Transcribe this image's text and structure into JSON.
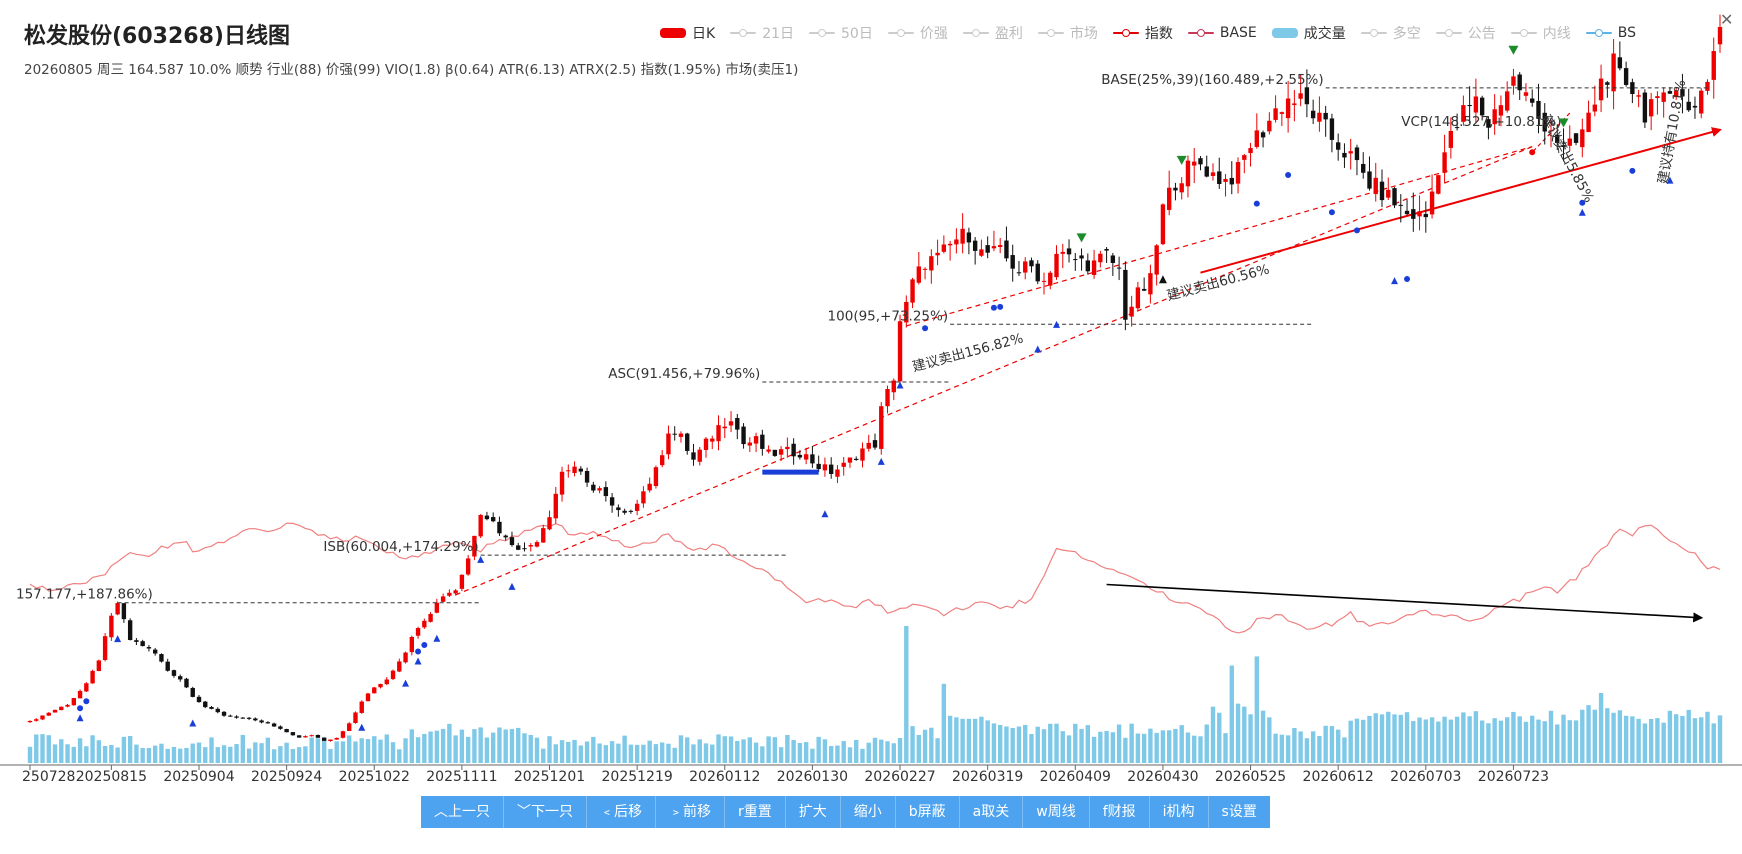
{
  "title": "松发股份(603268)日线图",
  "subtitle": "20260805 周三 164.587 10.0% 顺势 行业(88) 价强(99) VIO(1.8) β(0.64) ATR(6.13) ATRX(2.5) 指数(1.95%) 市场(卖压1)",
  "legend": [
    {
      "label": "日K",
      "color": "#ee0000",
      "kind": "bar",
      "on": true
    },
    {
      "label": "21日",
      "color": "#cccccc",
      "kind": "line",
      "on": false
    },
    {
      "label": "50日",
      "color": "#cccccc",
      "kind": "line",
      "on": false
    },
    {
      "label": "价强",
      "color": "#cccccc",
      "kind": "line",
      "on": false
    },
    {
      "label": "盈利",
      "color": "#cccccc",
      "kind": "line",
      "on": false
    },
    {
      "label": "市场",
      "color": "#cccccc",
      "kind": "line",
      "on": false
    },
    {
      "label": "指数",
      "color": "#e00000",
      "kind": "line",
      "on": true
    },
    {
      "label": "BASE",
      "color": "#c8385a",
      "kind": "line",
      "on": true
    },
    {
      "label": "成交量",
      "color": "#7ec8e8",
      "kind": "bar",
      "on": true
    },
    {
      "label": "多空",
      "color": "#cccccc",
      "kind": "line",
      "on": false
    },
    {
      "label": "公告",
      "color": "#cccccc",
      "kind": "line",
      "on": false
    },
    {
      "label": "内线",
      "color": "#cccccc",
      "kind": "line",
      "on": false
    },
    {
      "label": "BS",
      "color": "#5ab4e8",
      "kind": "line",
      "on": true
    }
  ],
  "close_symbol": "✕",
  "toolbar": [
    "︿上一只",
    "﹀下一只",
    "﹤后移",
    "﹥前移",
    "r重置",
    "扩大",
    "缩小",
    "b屏蔽",
    "a取关",
    "w周线",
    "f财报",
    "i机构",
    "s设置"
  ],
  "colors": {
    "up": "#ee0000",
    "down": "#111111",
    "volume": "#7ec8e8",
    "rs_line": "#f08080",
    "marker_blue": "#1a3fd9",
    "marker_green": "#1b8c2a",
    "trend_red": "#ee0000"
  },
  "chart_data": {
    "type": "candlestick",
    "x_tick_labels": [
      "250728",
      "20250815",
      "20250904",
      "20250924",
      "20251022",
      "20251111",
      "20251201",
      "20251219",
      "20260112",
      "20260130",
      "20260227",
      "20260319",
      "20260409",
      "20260430",
      "20260525",
      "20260612",
      "20260703",
      "20260723"
    ],
    "x_tick_index": [
      0,
      13,
      27,
      41,
      55,
      69,
      83,
      97,
      111,
      125,
      139,
      153,
      167,
      181,
      195,
      209,
      223,
      237
    ],
    "last_close": 164.587,
    "price_keypoints": [
      [
        0,
        14.8
      ],
      [
        3,
        18
      ],
      [
        6,
        21
      ],
      [
        9,
        28
      ],
      [
        11,
        37
      ],
      [
        13,
        52
      ],
      [
        14,
        57.2
      ],
      [
        16,
        44
      ],
      [
        18,
        42
      ],
      [
        20,
        39
      ],
      [
        22,
        33
      ],
      [
        24,
        30
      ],
      [
        26,
        24
      ],
      [
        28,
        20
      ],
      [
        31,
        17
      ],
      [
        34,
        16
      ],
      [
        38,
        14
      ],
      [
        40,
        12
      ],
      [
        43,
        9
      ],
      [
        45,
        10
      ],
      [
        47,
        8
      ],
      [
        49,
        9
      ],
      [
        51,
        14
      ],
      [
        53,
        22
      ],
      [
        55,
        27
      ],
      [
        57,
        30
      ],
      [
        60,
        40
      ],
      [
        62,
        49
      ],
      [
        64,
        54
      ],
      [
        66,
        60
      ],
      [
        68,
        62
      ],
      [
        70,
        73
      ],
      [
        71,
        82
      ],
      [
        72,
        90
      ],
      [
        74,
        86
      ],
      [
        76,
        80
      ],
      [
        79,
        76
      ],
      [
        81,
        80
      ],
      [
        83,
        89
      ],
      [
        85,
        104
      ],
      [
        87,
        106
      ],
      [
        89,
        99
      ],
      [
        91,
        98
      ],
      [
        93,
        91
      ],
      [
        95,
        88
      ],
      [
        98,
        97
      ],
      [
        100,
        104
      ],
      [
        102,
        119
      ],
      [
        104,
        116
      ],
      [
        106,
        108
      ],
      [
        108,
        114
      ],
      [
        110,
        120
      ],
      [
        112,
        124
      ],
      [
        114,
        114
      ],
      [
        116,
        115
      ],
      [
        118,
        110
      ],
      [
        120,
        111
      ],
      [
        123,
        111
      ],
      [
        126,
        106
      ],
      [
        128,
        104
      ],
      [
        130,
        106
      ],
      [
        133,
        112
      ],
      [
        135,
        114
      ],
      [
        136,
        126
      ],
      [
        137,
        132
      ],
      [
        138,
        138
      ],
      [
        139,
        158
      ],
      [
        140,
        163
      ],
      [
        141,
        171
      ],
      [
        143,
        179
      ],
      [
        145,
        180
      ],
      [
        148,
        187
      ],
      [
        150,
        189
      ],
      [
        152,
        182
      ],
      [
        155,
        182
      ],
      [
        158,
        176
      ],
      [
        160,
        177
      ],
      [
        162,
        172
      ],
      [
        164,
        182
      ],
      [
        166,
        180
      ],
      [
        168,
        179
      ],
      [
        170,
        178
      ],
      [
        172,
        181
      ],
      [
        174,
        176
      ],
      [
        175,
        160
      ],
      [
        177,
        167
      ],
      [
        179,
        172
      ],
      [
        181,
        198
      ],
      [
        183,
        208
      ],
      [
        185,
        212
      ],
      [
        187,
        214
      ],
      [
        189,
        210
      ],
      [
        191,
        208
      ],
      [
        193,
        211
      ],
      [
        195,
        221
      ],
      [
        197,
        226
      ],
      [
        199,
        233
      ],
      [
        201,
        237
      ],
      [
        203,
        236
      ],
      [
        205,
        232
      ],
      [
        208,
        223
      ],
      [
        211,
        216
      ],
      [
        214,
        207
      ],
      [
        217,
        202
      ],
      [
        220,
        196
      ],
      [
        223,
        195
      ],
      [
        225,
        213
      ],
      [
        227,
        223
      ],
      [
        229,
        232
      ],
      [
        231,
        236
      ],
      [
        233,
        228
      ],
      [
        235,
        237
      ],
      [
        237,
        244
      ],
      [
        239,
        238
      ],
      [
        241,
        230
      ],
      [
        243,
        227
      ],
      [
        245,
        218
      ],
      [
        247,
        221
      ],
      [
        249,
        230
      ],
      [
        251,
        243
      ],
      [
        253,
        249
      ],
      [
        255,
        239
      ],
      [
        257,
        241
      ],
      [
        258,
        230
      ],
      [
        260,
        242
      ],
      [
        262,
        235
      ],
      [
        264,
        238
      ],
      [
        266,
        236
      ],
      [
        268,
        242
      ],
      [
        269,
        255
      ],
      [
        270,
        265
      ]
    ],
    "rs_keypoints": [
      [
        0,
        0.3
      ],
      [
        3,
        0.26
      ],
      [
        6,
        0.3
      ],
      [
        9,
        0.32
      ],
      [
        12,
        0.37
      ],
      [
        14,
        0.44
      ],
      [
        16,
        0.48
      ],
      [
        18,
        0.45
      ],
      [
        21,
        0.5
      ],
      [
        24,
        0.54
      ],
      [
        27,
        0.47
      ],
      [
        30,
        0.52
      ],
      [
        34,
        0.58
      ],
      [
        38,
        0.6
      ],
      [
        42,
        0.62
      ],
      [
        46,
        0.57
      ],
      [
        50,
        0.55
      ],
      [
        54,
        0.54
      ],
      [
        57,
        0.48
      ],
      [
        60,
        0.44
      ],
      [
        63,
        0.46
      ],
      [
        66,
        0.5
      ],
      [
        69,
        0.53
      ],
      [
        72,
        0.49
      ],
      [
        75,
        0.53
      ],
      [
        78,
        0.57
      ],
      [
        81,
        0.6
      ],
      [
        84,
        0.62
      ],
      [
        87,
        0.56
      ],
      [
        90,
        0.58
      ],
      [
        93,
        0.54
      ],
      [
        96,
        0.5
      ],
      [
        99,
        0.53
      ],
      [
        102,
        0.56
      ],
      [
        106,
        0.5
      ],
      [
        110,
        0.51
      ],
      [
        113,
        0.45
      ],
      [
        116,
        0.4
      ],
      [
        119,
        0.33
      ],
      [
        122,
        0.25
      ],
      [
        125,
        0.2
      ],
      [
        128,
        0.22
      ],
      [
        131,
        0.17
      ],
      [
        134,
        0.22
      ],
      [
        137,
        0.15
      ],
      [
        140,
        0.18
      ],
      [
        143,
        0.17
      ],
      [
        146,
        0.14
      ],
      [
        149,
        0.17
      ],
      [
        152,
        0.21
      ],
      [
        155,
        0.17
      ],
      [
        158,
        0.2
      ],
      [
        160,
        0.22
      ],
      [
        162,
        0.35
      ],
      [
        164,
        0.5
      ],
      [
        166,
        0.48
      ],
      [
        168,
        0.45
      ],
      [
        171,
        0.4
      ],
      [
        174,
        0.37
      ],
      [
        177,
        0.33
      ],
      [
        180,
        0.27
      ],
      [
        183,
        0.19
      ],
      [
        185,
        0.2
      ],
      [
        188,
        0.14
      ],
      [
        191,
        0.08
      ],
      [
        193,
        0.03
      ],
      [
        196,
        0.1
      ],
      [
        199,
        0.14
      ],
      [
        202,
        0.1
      ],
      [
        205,
        0.06
      ],
      [
        208,
        0.09
      ],
      [
        211,
        0.14
      ],
      [
        214,
        0.07
      ],
      [
        217,
        0.1
      ],
      [
        220,
        0.12
      ],
      [
        223,
        0.16
      ],
      [
        226,
        0.14
      ],
      [
        229,
        0.1
      ],
      [
        232,
        0.12
      ],
      [
        235,
        0.18
      ],
      [
        238,
        0.22
      ],
      [
        241,
        0.28
      ],
      [
        244,
        0.26
      ],
      [
        247,
        0.34
      ],
      [
        250,
        0.44
      ],
      [
        252,
        0.52
      ],
      [
        254,
        0.6
      ],
      [
        256,
        0.56
      ],
      [
        258,
        0.62
      ],
      [
        260,
        0.6
      ],
      [
        262,
        0.55
      ],
      [
        264,
        0.51
      ],
      [
        266,
        0.46
      ],
      [
        268,
        0.4
      ],
      [
        270,
        0.38
      ]
    ],
    "volume_spikes": [
      [
        140,
        4.5
      ],
      [
        146,
        2.6
      ],
      [
        147,
        1.55
      ],
      [
        148,
        1.5
      ],
      [
        149,
        1.45
      ],
      [
        150,
        1.45
      ],
      [
        151,
        1.45
      ],
      [
        152,
        1.52
      ],
      [
        153,
        1.4
      ],
      [
        154,
        1.3
      ],
      [
        155,
        1.25
      ],
      [
        156,
        1.2
      ],
      [
        157,
        1.15
      ],
      [
        189,
        1.85
      ],
      [
        190,
        1.65
      ],
      [
        192,
        3.2
      ],
      [
        193,
        1.95
      ],
      [
        194,
        1.85
      ],
      [
        195,
        1.6
      ],
      [
        196,
        3.5
      ],
      [
        197,
        1.72
      ],
      [
        198,
        1.5
      ],
      [
        247,
        1.4
      ],
      [
        248,
        1.75
      ],
      [
        249,
        1.9
      ],
      [
        250,
        1.75
      ],
      [
        251,
        2.3
      ],
      [
        252,
        1.8
      ],
      [
        253,
        1.65
      ],
      [
        255,
        1.55
      ],
      [
        257,
        1.45
      ]
    ],
    "annotations": [
      {
        "text": "BASE(25%,39)(160.489,+2.55%)",
        "bar": 207,
        "price": 241.0,
        "to_bar": 268
      },
      {
        "text": "VCP(148.527,+10.81%)",
        "bar": 245,
        "price": 226.0
      },
      {
        "text": "100(95,+73.25%)",
        "bar": 147,
        "price": 156.6,
        "to_bar": 205
      },
      {
        "text": "ASC(91.456,+79.96%)",
        "bar": 117,
        "price": 136.0,
        "to_bar": 147
      },
      {
        "text": "ISB(60.004,+174.29%)",
        "bar": 72,
        "price": 74.2,
        "to_bar": 121
      },
      {
        "text": "157.177,+187.86%)",
        "bar": 14,
        "price": 57.2,
        "to_bar": 72
      }
    ],
    "trend_labels": [
      {
        "text": "建议卖出60.56%",
        "bar": 190,
        "price": 170.0,
        "angle": -15
      },
      {
        "text": "建议卖出156.82%",
        "bar": 150,
        "price": 145.0,
        "angle": -15
      },
      {
        "text": "建议卖出5.85%",
        "bar": 245,
        "price": 215.0,
        "angle": 62
      },
      {
        "text": "建议持有10.81%",
        "bar": 263,
        "price": 225.0,
        "angle": -80
      }
    ],
    "rs_trend": {
      "from_bar": 172,
      "from_value": 0.3,
      "to_bar": 267,
      "to_value": 0.12
    },
    "marker_bars": {
      "blue_dots": [
        8,
        9,
        62,
        63,
        143,
        154,
        155,
        196,
        201,
        208,
        212,
        220,
        248,
        256
      ],
      "blue_triangles": [
        8,
        14,
        26,
        53,
        60,
        62,
        65,
        72,
        77,
        127,
        136,
        139,
        161,
        164,
        218,
        248,
        262
      ],
      "green_triangles": [
        168,
        184,
        237,
        245
      ],
      "black_triangles": [
        181
      ]
    }
  }
}
